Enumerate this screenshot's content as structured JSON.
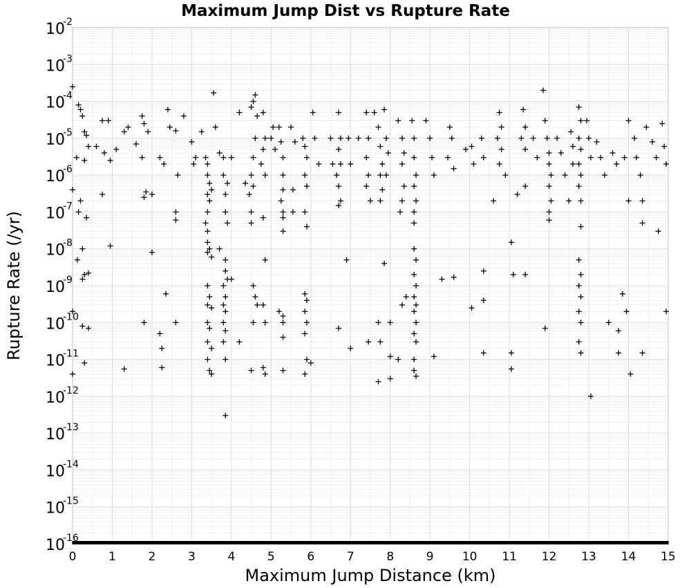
{
  "chart_data": {
    "type": "scatter",
    "title": "Maximum Jump Dist vs Rupture Rate",
    "xlabel": "Maximum Jump Distance (km)",
    "ylabel": "Rupture Rate (/yr)",
    "xlim": [
      0,
      15
    ],
    "ylim": [
      1e-16,
      0.01
    ],
    "yscale": "log",
    "grid": true,
    "marker": "plus",
    "x_ticks": [
      "0",
      "1",
      "2",
      "3",
      "4",
      "5",
      "6",
      "7",
      "8",
      "9",
      "10",
      "11",
      "12",
      "13",
      "14",
      "15"
    ],
    "y_ticks": [
      {
        "base": "10",
        "exp": "-2"
      },
      {
        "base": "10",
        "exp": "-3"
      },
      {
        "base": "10",
        "exp": "-4"
      },
      {
        "base": "10",
        "exp": "-5"
      },
      {
        "base": "10",
        "exp": "-6"
      },
      {
        "base": "10",
        "exp": "-7"
      },
      {
        "base": "10",
        "exp": "-8"
      },
      {
        "base": "10",
        "exp": "-9"
      },
      {
        "base": "10",
        "exp": "-10"
      },
      {
        "base": "10",
        "exp": "-11"
      },
      {
        "base": "10",
        "exp": "-12"
      },
      {
        "base": "10",
        "exp": "-13"
      },
      {
        "base": "10",
        "exp": "-14"
      },
      {
        "base": "10",
        "exp": "-15"
      },
      {
        "base": "10",
        "exp": "-16"
      }
    ],
    "points": [
      [
        0.0,
        0.00025
      ],
      [
        0.15,
        8e-05
      ],
      [
        0.2,
        6e-05
      ],
      [
        0.25,
        4e-05
      ],
      [
        0.3,
        1.5e-05
      ],
      [
        0.35,
        1.2e-05
      ],
      [
        0.4,
        6e-06
      ],
      [
        0.1,
        3e-06
      ],
      [
        0.3,
        2.5e-06
      ],
      [
        0.2,
        2e-07
      ],
      [
        0.15,
        1e-07
      ],
      [
        0.35,
        7e-08
      ],
      [
        0.25,
        1e-08
      ],
      [
        0.12,
        5e-09
      ],
      [
        0.3,
        2e-09
      ],
      [
        0.4,
        2.2e-09
      ],
      [
        0.25,
        1.5e-09
      ],
      [
        0.25,
        8e-11
      ],
      [
        0.4,
        7e-11
      ],
      [
        0.3,
        8e-12
      ],
      [
        0.0,
        4e-12
      ],
      [
        0.0,
        2e-10
      ],
      [
        0.0,
        4e-07
      ],
      [
        0.75,
        3e-07
      ],
      [
        0.95,
        1.2e-08
      ],
      [
        0.75,
        3e-05
      ],
      [
        0.9,
        3e-05
      ],
      [
        0.6,
        6e-06
      ],
      [
        0.8,
        4e-06
      ],
      [
        0.95,
        2.5e-06
      ],
      [
        1.1,
        5e-06
      ],
      [
        1.3,
        1.5e-05
      ],
      [
        1.4,
        2e-05
      ],
      [
        1.6,
        7e-06
      ],
      [
        1.75,
        4e-05
      ],
      [
        1.8,
        2.5e-05
      ],
      [
        1.9,
        1.5e-05
      ],
      [
        1.75,
        3e-06
      ],
      [
        1.8,
        2.5e-07
      ],
      [
        1.85,
        3.5e-07
      ],
      [
        2.0,
        3e-07
      ],
      [
        2.0,
        8e-09
      ],
      [
        1.8,
        1e-10
      ],
      [
        1.3,
        5.5e-12
      ],
      [
        2.2,
        3e-06
      ],
      [
        2.3,
        2e-06
      ],
      [
        2.4,
        6e-05
      ],
      [
        2.45,
        2e-05
      ],
      [
        2.6,
        1.6e-05
      ],
      [
        2.65,
        1e-06
      ],
      [
        2.6,
        1e-07
      ],
      [
        2.6,
        6e-08
      ],
      [
        2.35,
        6e-10
      ],
      [
        2.6,
        1e-10
      ],
      [
        2.2,
        5e-11
      ],
      [
        2.25,
        2e-11
      ],
      [
        2.25,
        6e-12
      ],
      [
        2.8,
        4e-05
      ],
      [
        3.0,
        8e-06
      ],
      [
        3.05,
        2e-06
      ],
      [
        3.1,
        3e-06
      ],
      [
        3.25,
        1.5e-05
      ],
      [
        3.35,
        3e-06
      ],
      [
        3.4,
        2e-06
      ],
      [
        3.4,
        1e-06
      ],
      [
        3.45,
        6e-07
      ],
      [
        3.5,
        4e-07
      ],
      [
        3.4,
        3e-07
      ],
      [
        3.45,
        2e-07
      ],
      [
        3.4,
        1e-07
      ],
      [
        3.35,
        5e-08
      ],
      [
        3.4,
        3e-08
      ],
      [
        3.4,
        1.5e-08
      ],
      [
        3.45,
        1e-08
      ],
      [
        3.4,
        8e-09
      ],
      [
        3.5,
        6e-09
      ],
      [
        3.4,
        1e-09
      ],
      [
        3.45,
        5e-10
      ],
      [
        3.4,
        3e-10
      ],
      [
        3.5,
        2.5e-10
      ],
      [
        3.4,
        1e-10
      ],
      [
        3.45,
        7e-11
      ],
      [
        3.4,
        3e-11
      ],
      [
        3.5,
        2e-11
      ],
      [
        3.4,
        1e-11
      ],
      [
        3.45,
        5e-12
      ],
      [
        3.5,
        4e-12
      ],
      [
        3.55,
        0.00017
      ],
      [
        3.6,
        2e-05
      ],
      [
        3.7,
        4e-06
      ],
      [
        3.8,
        3e-06
      ],
      [
        3.8,
        1e-06
      ],
      [
        3.9,
        6e-07
      ],
      [
        3.85,
        3e-07
      ],
      [
        3.85,
        1e-07
      ],
      [
        3.9,
        5e-08
      ],
      [
        3.7,
        1e-08
      ],
      [
        3.85,
        5e-09
      ],
      [
        3.85,
        2.5e-09
      ],
      [
        3.9,
        1.5e-09
      ],
      [
        3.8,
        1e-09
      ],
      [
        3.85,
        5e-10
      ],
      [
        3.8,
        3e-10
      ],
      [
        3.85,
        2e-10
      ],
      [
        3.8,
        1e-10
      ],
      [
        3.85,
        6e-11
      ],
      [
        3.8,
        3e-11
      ],
      [
        3.85,
        1e-11
      ],
      [
        3.85,
        3e-13
      ],
      [
        4.0,
        3e-06
      ],
      [
        4.0,
        1.5e-09
      ],
      [
        4.2,
        5e-05
      ],
      [
        4.2,
        3e-11
      ],
      [
        4.35,
        6e-07
      ],
      [
        4.45,
        3e-07
      ],
      [
        4.5,
        7e-05
      ],
      [
        4.55,
        0.0001
      ],
      [
        4.6,
        0.00015
      ],
      [
        4.65,
        4e-05
      ],
      [
        4.6,
        1e-05
      ],
      [
        4.55,
        3e-06
      ],
      [
        4.5,
        1e-06
      ],
      [
        4.55,
        5e-07
      ],
      [
        4.5,
        1e-07
      ],
      [
        4.5,
        5e-08
      ],
      [
        4.55,
        1e-09
      ],
      [
        4.6,
        5e-10
      ],
      [
        4.65,
        3e-10
      ],
      [
        4.55,
        1e-10
      ],
      [
        4.5,
        5e-12
      ],
      [
        4.8,
        5e-05
      ],
      [
        4.85,
        1e-05
      ],
      [
        4.8,
        5e-06
      ],
      [
        4.75,
        2e-06
      ],
      [
        4.85,
        1e-06
      ],
      [
        4.8,
        7e-08
      ],
      [
        4.85,
        5e-09
      ],
      [
        4.8,
        3e-10
      ],
      [
        4.85,
        1e-10
      ],
      [
        4.8,
        6e-12
      ],
      [
        4.85,
        4e-12
      ],
      [
        5.0,
        1e-05
      ],
      [
        5.05,
        2e-05
      ],
      [
        5.1,
        5e-06
      ],
      [
        5.2,
        2e-05
      ],
      [
        5.25,
        8e-06
      ],
      [
        5.3,
        3e-06
      ],
      [
        5.3,
        1e-06
      ],
      [
        5.3,
        4e-07
      ],
      [
        5.25,
        2e-07
      ],
      [
        5.3,
        1e-07
      ],
      [
        5.3,
        7e-08
      ],
      [
        5.3,
        3e-08
      ],
      [
        5.2,
        2e-10
      ],
      [
        5.3,
        1.5e-10
      ],
      [
        5.3,
        1e-10
      ],
      [
        5.3,
        4e-11
      ],
      [
        5.3,
        5e-12
      ],
      [
        5.5,
        2e-05
      ],
      [
        5.6,
        8e-06
      ],
      [
        5.55,
        4e-07
      ],
      [
        5.55,
        1e-07
      ],
      [
        5.8,
        1e-05
      ],
      [
        5.85,
        6e-06
      ],
      [
        5.9,
        3e-06
      ],
      [
        5.85,
        1e-06
      ],
      [
        5.9,
        5e-07
      ],
      [
        5.85,
        1e-07
      ],
      [
        5.9,
        4e-08
      ],
      [
        5.85,
        6e-10
      ],
      [
        5.9,
        4e-10
      ],
      [
        5.85,
        2e-10
      ],
      [
        5.9,
        1e-10
      ],
      [
        5.85,
        5e-11
      ],
      [
        5.9,
        1e-11
      ],
      [
        5.85,
        4e-12
      ],
      [
        6.05,
        5e-05
      ],
      [
        6.1,
        1e-05
      ],
      [
        6.2,
        2e-06
      ],
      [
        6.0,
        8e-12
      ],
      [
        6.5,
        1e-05
      ],
      [
        6.55,
        2e-06
      ],
      [
        6.7,
        5e-05
      ],
      [
        6.75,
        1e-05
      ],
      [
        6.7,
        5e-06
      ],
      [
        6.75,
        2e-06
      ],
      [
        6.65,
        1e-06
      ],
      [
        6.7,
        5e-07
      ],
      [
        6.75,
        2e-07
      ],
      [
        6.7,
        1.5e-07
      ],
      [
        6.7,
        7e-11
      ],
      [
        6.9,
        5e-09
      ],
      [
        6.95,
        1e-05
      ],
      [
        7.0,
        2e-06
      ],
      [
        7.0,
        2e-11
      ],
      [
        7.2,
        1e-05
      ],
      [
        7.4,
        5e-05
      ],
      [
        7.45,
        1e-05
      ],
      [
        7.4,
        3e-06
      ],
      [
        7.45,
        1e-06
      ],
      [
        7.4,
        5e-07
      ],
      [
        7.5,
        2e-07
      ],
      [
        7.45,
        3e-11
      ],
      [
        7.6,
        5e-05
      ],
      [
        7.7,
        2e-05
      ],
      [
        7.75,
        6e-06
      ],
      [
        7.8,
        2e-06
      ],
      [
        7.75,
        1e-06
      ],
      [
        7.8,
        4e-07
      ],
      [
        7.75,
        2e-07
      ],
      [
        7.7,
        1e-10
      ],
      [
        7.75,
        3e-11
      ],
      [
        7.7,
        2.5e-12
      ],
      [
        7.85,
        6e-05
      ],
      [
        7.9,
        1e-05
      ],
      [
        7.95,
        4e-06
      ],
      [
        7.9,
        1e-06
      ],
      [
        7.85,
        4e-09
      ],
      [
        8.0,
        1e-10
      ],
      [
        8.0,
        1.2e-11
      ],
      [
        8.0,
        3e-12
      ],
      [
        8.2,
        3e-05
      ],
      [
        8.3,
        1e-05
      ],
      [
        8.35,
        4e-06
      ],
      [
        8.3,
        2e-06
      ],
      [
        8.35,
        5e-07
      ],
      [
        8.3,
        2e-07
      ],
      [
        8.25,
        1e-07
      ],
      [
        8.2,
        1e-11
      ],
      [
        8.3,
        3e-10
      ],
      [
        8.4,
        5e-10
      ],
      [
        8.55,
        3e-05
      ],
      [
        8.6,
        1e-05
      ],
      [
        8.6,
        3e-06
      ],
      [
        8.65,
        1e-06
      ],
      [
        8.6,
        5e-07
      ],
      [
        8.65,
        2e-07
      ],
      [
        8.6,
        1e-07
      ],
      [
        8.6,
        5e-08
      ],
      [
        8.6,
        1e-08
      ],
      [
        8.65,
        5e-09
      ],
      [
        8.6,
        2e-09
      ],
      [
        8.65,
        1e-09
      ],
      [
        8.6,
        5e-10
      ],
      [
        8.65,
        3e-10
      ],
      [
        8.6,
        2e-10
      ],
      [
        8.65,
        1e-10
      ],
      [
        8.6,
        5e-11
      ],
      [
        8.65,
        3e-11
      ],
      [
        8.6,
        1e-11
      ],
      [
        8.6,
        5e-12
      ],
      [
        8.65,
        3.5e-12
      ],
      [
        8.9,
        3e-05
      ],
      [
        9.0,
        1e-05
      ],
      [
        9.05,
        3e-06
      ],
      [
        9.1,
        1e-06
      ],
      [
        9.1,
        1.2e-11
      ],
      [
        9.3,
        1.5e-09
      ],
      [
        9.5,
        2e-05
      ],
      [
        9.55,
        1e-05
      ],
      [
        9.45,
        3e-06
      ],
      [
        9.6,
        1.5e-06
      ],
      [
        9.6,
        1.7e-09
      ],
      [
        9.9,
        5e-06
      ],
      [
        10.05,
        6e-06
      ],
      [
        10.1,
        2e-06
      ],
      [
        10.05,
        2.5e-10
      ],
      [
        10.3,
        1e-05
      ],
      [
        10.35,
        3e-06
      ],
      [
        10.35,
        4e-10
      ],
      [
        10.35,
        1.5e-11
      ],
      [
        10.35,
        2.5e-09
      ],
      [
        10.6,
        2e-07
      ],
      [
        10.7,
        1e-05
      ],
      [
        10.75,
        5e-05
      ],
      [
        10.8,
        2e-05
      ],
      [
        10.8,
        5e-06
      ],
      [
        10.75,
        2e-06
      ],
      [
        10.9,
        1e-06
      ],
      [
        11.05,
        1.5e-08
      ],
      [
        11.1,
        2e-09
      ],
      [
        11.05,
        1.5e-11
      ],
      [
        11.05,
        5.5e-12
      ],
      [
        11.2,
        3e-07
      ],
      [
        11.3,
        1e-05
      ],
      [
        11.35,
        6e-05
      ],
      [
        11.4,
        2e-05
      ],
      [
        11.4,
        5e-06
      ],
      [
        11.4,
        5e-07
      ],
      [
        11.4,
        2e-09
      ],
      [
        11.6,
        1e-05
      ],
      [
        11.7,
        3e-06
      ],
      [
        11.85,
        0.0002
      ],
      [
        11.9,
        3e-05
      ],
      [
        11.95,
        1e-05
      ],
      [
        12.0,
        4e-06
      ],
      [
        12.0,
        2e-06
      ],
      [
        12.05,
        1e-06
      ],
      [
        12.0,
        5e-07
      ],
      [
        12.05,
        2e-07
      ],
      [
        12.0,
        1e-07
      ],
      [
        12.0,
        6e-08
      ],
      [
        11.9,
        7e-11
      ],
      [
        12.2,
        1e-05
      ],
      [
        12.3,
        4e-06
      ],
      [
        12.4,
        1e-06
      ],
      [
        12.5,
        2e-07
      ],
      [
        12.55,
        1.5e-05
      ],
      [
        12.6,
        6e-06
      ],
      [
        12.6,
        2e-06
      ],
      [
        12.75,
        7e-05
      ],
      [
        12.8,
        3e-05
      ],
      [
        12.75,
        1e-05
      ],
      [
        12.8,
        5e-06
      ],
      [
        12.75,
        2e-06
      ],
      [
        12.8,
        1e-06
      ],
      [
        12.75,
        5e-07
      ],
      [
        12.8,
        2e-07
      ],
      [
        12.8,
        4e-08
      ],
      [
        12.75,
        5e-09
      ],
      [
        12.8,
        2e-09
      ],
      [
        12.75,
        1e-09
      ],
      [
        12.8,
        5e-10
      ],
      [
        12.75,
        2e-10
      ],
      [
        12.8,
        1e-10
      ],
      [
        12.75,
        3e-11
      ],
      [
        12.8,
        1.5e-11
      ],
      [
        12.95,
        3e-05
      ],
      [
        13.0,
        1e-05
      ],
      [
        13.05,
        3e-06
      ],
      [
        13.05,
        1e-12
      ],
      [
        13.2,
        8e-06
      ],
      [
        13.3,
        3e-06
      ],
      [
        13.4,
        1e-06
      ],
      [
        13.5,
        1e-10
      ],
      [
        13.6,
        4e-06
      ],
      [
        13.7,
        2e-06
      ],
      [
        13.75,
        6e-11
      ],
      [
        13.75,
        1.5e-11
      ],
      [
        13.85,
        6e-10
      ],
      [
        13.9,
        3e-06
      ],
      [
        13.95,
        2e-10
      ],
      [
        14.0,
        3e-05
      ],
      [
        14.0,
        2e-07
      ],
      [
        14.05,
        4e-12
      ],
      [
        14.15,
        1e-05
      ],
      [
        14.2,
        3e-06
      ],
      [
        14.3,
        1e-06
      ],
      [
        14.35,
        2e-07
      ],
      [
        14.35,
        5e-08
      ],
      [
        14.35,
        1.5e-11
      ],
      [
        14.45,
        2e-05
      ],
      [
        14.6,
        8e-06
      ],
      [
        14.7,
        3e-06
      ],
      [
        14.75,
        3e-08
      ],
      [
        14.85,
        2.5e-05
      ],
      [
        14.9,
        6e-06
      ],
      [
        14.95,
        2e-06
      ],
      [
        14.95,
        2e-10
      ]
    ],
    "floor_value": 1e-16
  }
}
